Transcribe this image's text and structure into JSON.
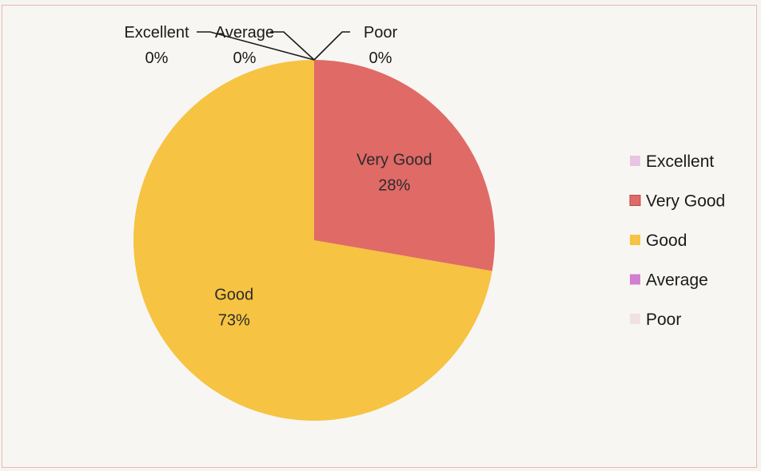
{
  "chart_data": {
    "type": "pie",
    "title": "",
    "categories": [
      "Excellent",
      "Very Good",
      "Good",
      "Average",
      "Poor"
    ],
    "values": [
      0,
      28,
      73,
      0,
      0
    ],
    "value_labels": [
      "0%",
      "28%",
      "73%",
      "0%",
      "0%"
    ],
    "colors": [
      "#e7c6e3",
      "#e06a66",
      "#f6c342",
      "#d27fcf",
      "#f1e0e4"
    ],
    "legend_position": "right"
  }
}
